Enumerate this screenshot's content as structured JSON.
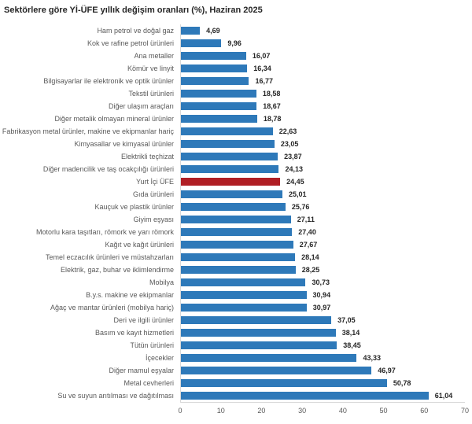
{
  "colors": {
    "bar": "#2E79B9",
    "highlight_bar": "#B01E24",
    "title_text": "#262626",
    "label_text": "#595959",
    "value_text": "#262626",
    "axis_line": "#D9D9D9"
  },
  "chart_data": {
    "type": "bar",
    "orientation": "horizontal",
    "title": "Sektörlere göre Yİ-ÜFE yıllık değişim oranları (%), Haziran 2025",
    "xlabel": "",
    "ylabel": "",
    "xlim": [
      0,
      70
    ],
    "xticks": [
      0,
      10,
      20,
      30,
      40,
      50,
      60,
      70
    ],
    "grid": false,
    "legend": false,
    "highlight_category": "Yurt İçi ÜFE",
    "highlight_index": 12,
    "categories": [
      "Ham petrol ve doğal gaz",
      "Kok ve rafine petrol ürünleri",
      "Ana metaller",
      "Kömür ve linyit",
      "Bilgisayarlar ile elektronik ve optik ürünler",
      "Tekstil ürünleri",
      "Diğer ulaşım araçları",
      "Diğer metalik olmayan mineral ürünler",
      "Fabrikasyon metal ürünler, makine ve ekipmanlar hariç",
      "Kimyasallar ve kimyasal ürünler",
      "Elektrikli teçhizat",
      "Diğer madencilik ve taş ocakçılığı ürünleri",
      "Yurt İçi ÜFE",
      "Gıda ürünleri",
      "Kauçuk ve plastik ürünler",
      "Giyim eşyası",
      "Motorlu kara taşıtları, römork ve yarı römork",
      "Kağıt ve kağıt ürünleri",
      "Temel eczacılık ürünleri ve müstahzarları",
      "Elektrik, gaz, buhar ve iklimlendirme",
      "Mobilya",
      "B.y.s. makine ve ekipmanlar",
      "Ağaç ve mantar ürünleri (mobilya hariç)",
      "Deri ve ilgili ürünler",
      "Basım ve kayıt hizmetleri",
      "Tütün ürünleri",
      "İçecekler",
      "Diğer mamul eşyalar",
      "Metal cevherleri",
      "Su ve suyun arıtılması ve dağıtılması"
    ],
    "values": [
      4.69,
      9.96,
      16.07,
      16.34,
      16.77,
      18.58,
      18.67,
      18.78,
      22.63,
      23.05,
      23.87,
      24.13,
      24.45,
      25.01,
      25.76,
      27.11,
      27.4,
      27.67,
      28.14,
      28.25,
      30.73,
      30.94,
      30.97,
      37.05,
      38.14,
      38.45,
      43.33,
      46.97,
      50.78,
      61.04
    ],
    "value_labels": [
      "4,69",
      "9,96",
      "16,07",
      "16,34",
      "16,77",
      "18,58",
      "18,67",
      "18,78",
      "22,63",
      "23,05",
      "23,87",
      "24,13",
      "24,45",
      "25,01",
      "25,76",
      "27,11",
      "27,40",
      "27,67",
      "28,14",
      "28,25",
      "30,73",
      "30,94",
      "30,97",
      "37,05",
      "38,14",
      "38,45",
      "43,33",
      "46,97",
      "50,78",
      "61,04"
    ]
  }
}
